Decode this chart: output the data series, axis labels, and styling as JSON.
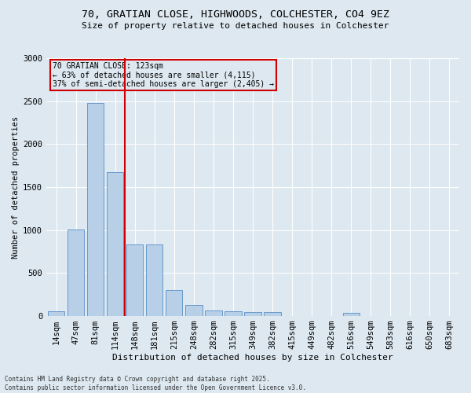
{
  "title_line1": "70, GRATIAN CLOSE, HIGHWOODS, COLCHESTER, CO4 9EZ",
  "title_line2": "Size of property relative to detached houses in Colchester",
  "xlabel": "Distribution of detached houses by size in Colchester",
  "ylabel": "Number of detached properties",
  "categories": [
    "14sqm",
    "47sqm",
    "81sqm",
    "114sqm",
    "148sqm",
    "181sqm",
    "215sqm",
    "248sqm",
    "282sqm",
    "315sqm",
    "349sqm",
    "382sqm",
    "415sqm",
    "449sqm",
    "482sqm",
    "516sqm",
    "549sqm",
    "583sqm",
    "616sqm",
    "650sqm",
    "683sqm"
  ],
  "values": [
    55,
    1005,
    2480,
    1670,
    830,
    830,
    300,
    130,
    65,
    60,
    45,
    50,
    0,
    0,
    0,
    35,
    0,
    0,
    0,
    0,
    0
  ],
  "bar_color": "#b8cfe8",
  "bar_edge_color": "#6699cc",
  "background_color": "#dde8f0",
  "grid_color": "#ffffff",
  "vline_color": "#cc0000",
  "vline_pos": 3.5,
  "annotation_title": "70 GRATIAN CLOSE: 123sqm",
  "annotation_line1": "← 63% of detached houses are smaller (4,115)",
  "annotation_line2": "37% of semi-detached houses are larger (2,405) →",
  "footer_line1": "Contains HM Land Registry data © Crown copyright and database right 2025.",
  "footer_line2": "Contains public sector information licensed under the Open Government Licence v3.0.",
  "ylim": [
    0,
    3000
  ],
  "yticks": [
    0,
    500,
    1000,
    1500,
    2000,
    2500,
    3000
  ],
  "title1_fontsize": 9.5,
  "title2_fontsize": 8.0,
  "xlabel_fontsize": 8.0,
  "ylabel_fontsize": 7.5,
  "tick_fontsize": 7.5,
  "footer_fontsize": 5.5
}
